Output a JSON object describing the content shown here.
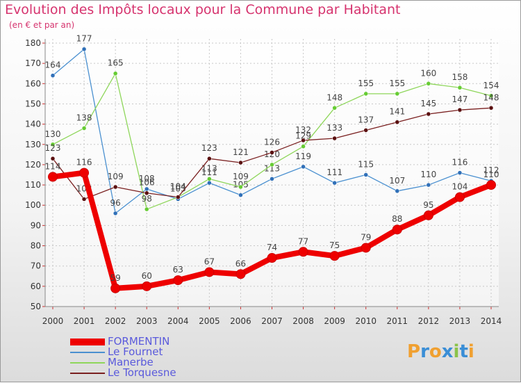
{
  "title": "Evolution des Impôts locaux pour la Commune par Habitant",
  "subtitle": "(en € et par an)",
  "logo": {
    "letters": [
      "P",
      "r",
      "o",
      "x",
      "i",
      "t",
      "i"
    ],
    "colors": [
      "#f0a030",
      "#3a8ed6",
      "#f0a030",
      "#3a8ed6",
      "#8bc34a",
      "#3a8ed6",
      "#f0a030"
    ]
  },
  "chart_data": {
    "type": "line",
    "x": [
      2000,
      2001,
      2002,
      2003,
      2004,
      2005,
      2006,
      2007,
      2008,
      2009,
      2010,
      2011,
      2012,
      2013,
      2014
    ],
    "ylim": [
      50,
      180
    ],
    "yticks": [
      50,
      60,
      70,
      80,
      90,
      100,
      110,
      120,
      130,
      140,
      150,
      160,
      170,
      180
    ],
    "grid": true,
    "legend_position": "bottom-left",
    "series": [
      {
        "name": "FORMENTIN",
        "color": "#ee0000",
        "emphasis": true,
        "values": [
          114,
          116,
          59,
          60,
          63,
          67,
          66,
          74,
          77,
          75,
          79,
          88,
          95,
          104,
          110
        ]
      },
      {
        "name": "Le Fournet",
        "color": "#4a90d0",
        "marker": "#3070b8",
        "values": [
          164,
          177,
          96,
          108,
          103,
          111,
          105,
          113,
          119,
          111,
          115,
          107,
          110,
          116,
          112
        ]
      },
      {
        "name": "Manerbe",
        "color": "#8ed65a",
        "marker": "#66cc33",
        "values": [
          130,
          138,
          165,
          98,
          104,
          113,
          109,
          120,
          129,
          148,
          155,
          155,
          160,
          158,
          154
        ]
      },
      {
        "name": "Le Torquesne",
        "color": "#7a2020",
        "marker": "#5a1010",
        "values": [
          123,
          103,
          109,
          106,
          104,
          123,
          121,
          126,
          132,
          133,
          137,
          141,
          145,
          147,
          148
        ]
      }
    ]
  }
}
